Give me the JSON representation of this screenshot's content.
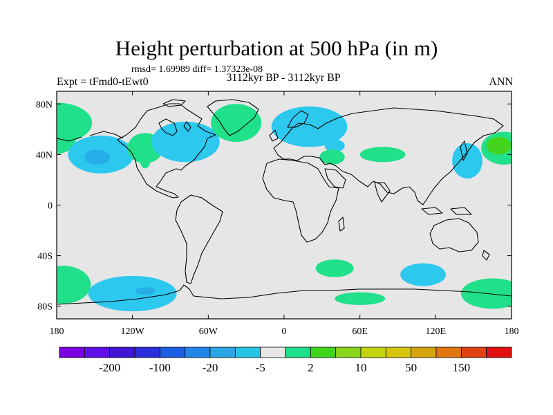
{
  "title": "Height perturbation at 500 hPa (in m)",
  "stats": "rmsd= 1.69989 diff= 1.37323e-08",
  "experiment": "Expt = tFmd0-tEwt0",
  "period": "3112kyr BP - 3112kyr BP",
  "season": "ANN",
  "map": {
    "projection": "cylindrical equidistant",
    "lon_range": [
      -180,
      180
    ],
    "lat_range": [
      -90,
      90
    ],
    "background_color": "#e6e6e6",
    "coastline_color": "#000000",
    "lat_tick_labels": [
      {
        "lat": 80,
        "label": "80N"
      },
      {
        "lat": 40,
        "label": "40N"
      },
      {
        "lat": 0,
        "label": "0"
      },
      {
        "lat": -40,
        "label": "40S"
      },
      {
        "lat": -80,
        "label": "80S"
      }
    ],
    "lon_tick_labels": [
      {
        "lon": -180,
        "label": "180"
      },
      {
        "lon": -120,
        "label": "120W"
      },
      {
        "lon": -60,
        "label": "60W"
      },
      {
        "lon": 0,
        "label": "0"
      },
      {
        "lon": 60,
        "label": "60E"
      },
      {
        "lon": 120,
        "label": "120E"
      },
      {
        "lon": 180,
        "label": "180"
      }
    ],
    "anomaly_regions": [
      {
        "lon": -180,
        "lat": 65,
        "rlon": 28,
        "rlat": 16,
        "level": "2 to 10"
      },
      {
        "lon": -185,
        "lat": 50,
        "rlon": 20,
        "rlat": 10,
        "level": "2 to 10"
      },
      {
        "lon": -145,
        "lat": 40,
        "rlon": 26,
        "rlat": 15,
        "level": "-5 to 2"
      },
      {
        "lon": -148,
        "lat": 38,
        "rlon": 10,
        "rlat": 6,
        "level": "-20 to -5"
      },
      {
        "lon": -110,
        "lat": 45,
        "rlon": 14,
        "rlat": 12,
        "level": "2 to 10"
      },
      {
        "lon": -110,
        "lat": 35,
        "rlon": 4,
        "rlat": 6,
        "level": "2 to 10"
      },
      {
        "lon": -78,
        "lat": 50,
        "rlon": 27,
        "rlat": 16,
        "level": "-5 to 2"
      },
      {
        "lon": -38,
        "lat": 65,
        "rlon": 20,
        "rlat": 15,
        "level": "2 to 10"
      },
      {
        "lon": 20,
        "lat": 62,
        "rlon": 30,
        "rlat": 16,
        "level": "-5 to 2"
      },
      {
        "lon": 40,
        "lat": 47,
        "rlon": 8,
        "rlat": 5,
        "level": "-5 to 2"
      },
      {
        "lon": 38,
        "lat": 38,
        "rlon": 10,
        "rlat": 6,
        "level": "2 to 10"
      },
      {
        "lon": 78,
        "lat": 40,
        "rlon": 18,
        "rlat": 6,
        "level": "2 to 10"
      },
      {
        "lon": 145,
        "lat": 35,
        "rlon": 12,
        "rlat": 14,
        "level": "-5 to 2"
      },
      {
        "lon": 174,
        "lat": 45,
        "rlon": 18,
        "rlat": 13,
        "level": "2 to 10"
      },
      {
        "lon": 170,
        "lat": 47,
        "rlon": 10,
        "rlat": 7,
        "level": "10 to 50"
      },
      {
        "lon": -175,
        "lat": -63,
        "rlon": 22,
        "rlat": 15,
        "level": "2 to 10"
      },
      {
        "lon": -120,
        "lat": -70,
        "rlon": 35,
        "rlat": 14,
        "level": "-5 to 2"
      },
      {
        "lon": -110,
        "lat": -68,
        "rlon": 8,
        "rlat": 3,
        "level": "-20 to -5"
      },
      {
        "lon": 40,
        "lat": -50,
        "rlon": 15,
        "rlat": 7,
        "level": "2 to 10"
      },
      {
        "lon": 110,
        "lat": -55,
        "rlon": 18,
        "rlat": 9,
        "level": "-5 to 2"
      },
      {
        "lon": 60,
        "lat": -74,
        "rlon": 20,
        "rlat": 5,
        "level": "2 to 10"
      },
      {
        "lon": 165,
        "lat": -70,
        "rlon": 25,
        "rlat": 12,
        "level": "2 to 10"
      }
    ]
  },
  "colorbar": {
    "colors": [
      "#7b00e0",
      "#5e0ee8",
      "#4115d8",
      "#2b2ed8",
      "#1b5ee2",
      "#1f86e8",
      "#2aa6e4",
      "#25c4e6",
      "#e6e6e6",
      "#1fe08a",
      "#3ed41c",
      "#8ad41a",
      "#c4d40e",
      "#d8c60c",
      "#d6a40e",
      "#e07610",
      "#e04012",
      "#e01010"
    ],
    "tick_labels": [
      {
        "after_box": 1,
        "label": "-200"
      },
      {
        "after_box": 3,
        "label": "-100"
      },
      {
        "after_box": 5,
        "label": "-20"
      },
      {
        "after_box": 7,
        "label": "-5"
      },
      {
        "after_box": 9,
        "label": "2"
      },
      {
        "after_box": 11,
        "label": "10"
      },
      {
        "after_box": 13,
        "label": "50"
      },
      {
        "after_box": 15,
        "label": "150"
      }
    ]
  },
  "level_colors": {
    "-20 to -5": "#25aee8",
    "-5 to 2": "#2cc8ee",
    "2 to 10": "#20e08a",
    "10 to 50": "#44d41e"
  }
}
